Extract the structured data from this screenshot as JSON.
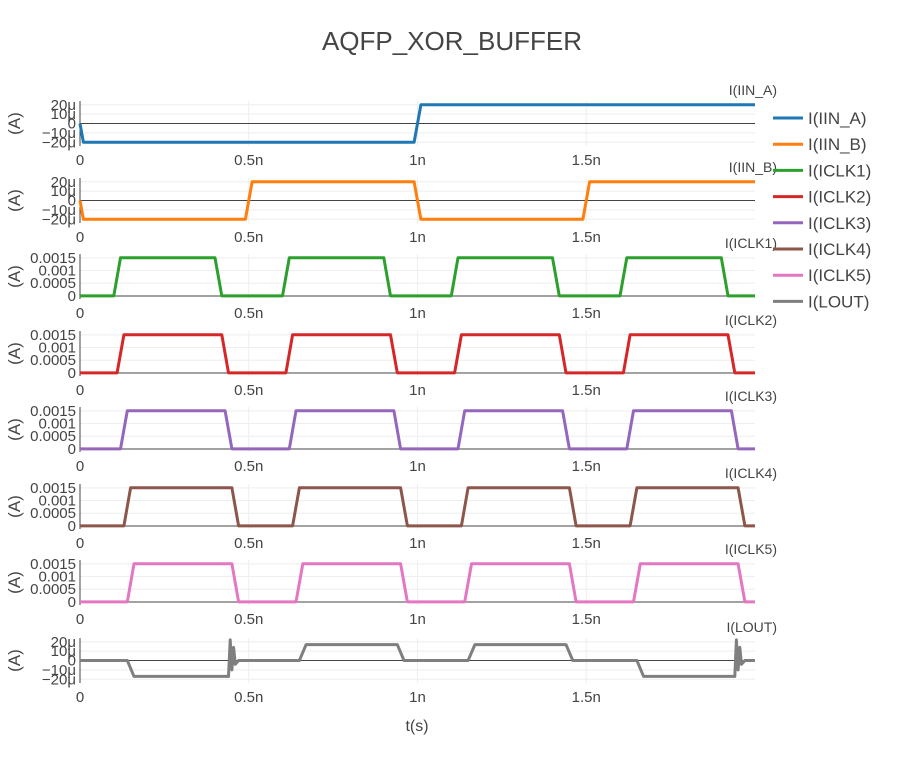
{
  "chart_data": {
    "type": "line",
    "title": "AQFP_XOR_BUFFER",
    "xlabel": "t(s)",
    "x_ticks": [
      {
        "value": 0,
        "label": "0"
      },
      {
        "value": 0.5,
        "label": "0.5n"
      },
      {
        "value": 1.0,
        "label": "1n"
      },
      {
        "value": 1.5,
        "label": "1.5n"
      }
    ],
    "x_unit_note": "x values in ns",
    "xlim": [
      0,
      2.0
    ],
    "grid": true,
    "legend": "right",
    "subplots": [
      {
        "name": "I(IIN_A)",
        "title": "I(IIN_A)",
        "ylabel": "(A)",
        "color": "#1f77b4",
        "ylim": [
          -24,
          24
        ],
        "y_ticks": [
          {
            "value": 20,
            "label": "20μ"
          },
          {
            "value": 10,
            "label": "10μ"
          },
          {
            "value": 0,
            "label": "0"
          },
          {
            "value": -10,
            "label": "−10μ"
          },
          {
            "value": -20,
            "label": "−20μ"
          }
        ],
        "x": [
          0,
          0.01,
          0.99,
          1.01,
          2.0
        ],
        "y": [
          0,
          -20,
          -20,
          20,
          20
        ]
      },
      {
        "name": "I(IIN_B)",
        "title": "I(IIN_B)",
        "ylabel": "(A)",
        "color": "#ff7f0e",
        "ylim": [
          -24,
          24
        ],
        "y_ticks": [
          {
            "value": 20,
            "label": "20μ"
          },
          {
            "value": 10,
            "label": "10μ"
          },
          {
            "value": 0,
            "label": "0"
          },
          {
            "value": -10,
            "label": "−10μ"
          },
          {
            "value": -20,
            "label": "−20μ"
          }
        ],
        "x": [
          0,
          0.01,
          0.49,
          0.51,
          0.99,
          1.01,
          1.49,
          1.51,
          2.0
        ],
        "y": [
          0,
          -20,
          -20,
          20,
          20,
          -20,
          -20,
          20,
          20
        ]
      },
      {
        "name": "I(ICLK1)",
        "title": "I(ICLK1)",
        "ylabel": "(A)",
        "color": "#2ca02c",
        "ylim": [
          -0.00012,
          0.00165
        ],
        "y_ticks": [
          {
            "value": 0.0015,
            "label": "0.0015"
          },
          {
            "value": 0.001,
            "label": "0.001"
          },
          {
            "value": 0.0005,
            "label": "0.0005"
          },
          {
            "value": 0,
            "label": "0"
          }
        ],
        "x": [
          0,
          0.1,
          0.12,
          0.4,
          0.42,
          0.6,
          0.62,
          0.9,
          0.92,
          1.1,
          1.12,
          1.4,
          1.42,
          1.6,
          1.62,
          1.9,
          1.92,
          2.0
        ],
        "y": [
          0,
          0,
          0.0015,
          0.0015,
          0,
          0,
          0.0015,
          0.0015,
          0,
          0,
          0.0015,
          0.0015,
          0,
          0,
          0.0015,
          0.0015,
          0,
          0
        ]
      },
      {
        "name": "I(ICLK2)",
        "title": "I(ICLK2)",
        "ylabel": "(A)",
        "color": "#d62728",
        "ylim": [
          -0.00012,
          0.00165
        ],
        "y_ticks": [
          {
            "value": 0.0015,
            "label": "0.0015"
          },
          {
            "value": 0.001,
            "label": "0.001"
          },
          {
            "value": 0.0005,
            "label": "0.0005"
          },
          {
            "value": 0,
            "label": "0"
          }
        ],
        "x": [
          0,
          0.11,
          0.13,
          0.42,
          0.44,
          0.61,
          0.63,
          0.92,
          0.94,
          1.11,
          1.13,
          1.42,
          1.44,
          1.61,
          1.63,
          1.92,
          1.94,
          2.0
        ],
        "y": [
          0,
          0,
          0.0015,
          0.0015,
          0,
          0,
          0.0015,
          0.0015,
          0,
          0,
          0.0015,
          0.0015,
          0,
          0,
          0.0015,
          0.0015,
          0,
          0
        ]
      },
      {
        "name": "I(ICLK3)",
        "title": "I(ICLK3)",
        "ylabel": "(A)",
        "color": "#9467bd",
        "ylim": [
          -0.00012,
          0.00165
        ],
        "y_ticks": [
          {
            "value": 0.0015,
            "label": "0.0015"
          },
          {
            "value": 0.001,
            "label": "0.001"
          },
          {
            "value": 0.0005,
            "label": "0.0005"
          },
          {
            "value": 0,
            "label": "0"
          }
        ],
        "x": [
          0,
          0.12,
          0.14,
          0.43,
          0.45,
          0.62,
          0.64,
          0.93,
          0.95,
          1.12,
          1.14,
          1.43,
          1.45,
          1.62,
          1.64,
          1.93,
          1.95,
          2.0
        ],
        "y": [
          0,
          0,
          0.0015,
          0.0015,
          0,
          0,
          0.0015,
          0.0015,
          0,
          0,
          0.0015,
          0.0015,
          0,
          0,
          0.0015,
          0.0015,
          0,
          0
        ]
      },
      {
        "name": "I(ICLK4)",
        "title": "I(ICLK4)",
        "ylabel": "(A)",
        "color": "#8c564b",
        "ylim": [
          -0.00012,
          0.00165
        ],
        "y_ticks": [
          {
            "value": 0.0015,
            "label": "0.0015"
          },
          {
            "value": 0.001,
            "label": "0.001"
          },
          {
            "value": 0.0005,
            "label": "0.0005"
          },
          {
            "value": 0,
            "label": "0"
          }
        ],
        "x": [
          0,
          0.13,
          0.15,
          0.45,
          0.47,
          0.63,
          0.65,
          0.95,
          0.97,
          1.13,
          1.15,
          1.45,
          1.47,
          1.63,
          1.65,
          1.95,
          1.97,
          2.0
        ],
        "y": [
          0,
          0,
          0.0015,
          0.0015,
          0,
          0,
          0.0015,
          0.0015,
          0,
          0,
          0.0015,
          0.0015,
          0,
          0,
          0.0015,
          0.0015,
          0,
          0
        ]
      },
      {
        "name": "I(ICLK5)",
        "title": "I(ICLK5)",
        "ylabel": "(A)",
        "color": "#e377c2",
        "ylim": [
          -0.00012,
          0.00165
        ],
        "y_ticks": [
          {
            "value": 0.0015,
            "label": "0.0015"
          },
          {
            "value": 0.001,
            "label": "0.001"
          },
          {
            "value": 0.0005,
            "label": "0.0005"
          },
          {
            "value": 0,
            "label": "0"
          }
        ],
        "x": [
          0,
          0.14,
          0.16,
          0.45,
          0.47,
          0.64,
          0.66,
          0.95,
          0.97,
          1.14,
          1.16,
          1.45,
          1.47,
          1.64,
          1.66,
          1.95,
          1.97,
          2.0
        ],
        "y": [
          0,
          0,
          0.0015,
          0.0015,
          0,
          0,
          0.0015,
          0.0015,
          0,
          0,
          0.0015,
          0.0015,
          0,
          0,
          0.0015,
          0.0015,
          0,
          0
        ]
      },
      {
        "name": "I(LOUT)",
        "title": "I(LOUT)",
        "ylabel": "(A)",
        "color": "#7f7f7f",
        "ylim": [
          -24,
          24
        ],
        "y_ticks": [
          {
            "value": 20,
            "label": "20μ"
          },
          {
            "value": 10,
            "label": "10μ"
          },
          {
            "value": 0,
            "label": "0"
          },
          {
            "value": -10,
            "label": "−10μ"
          },
          {
            "value": -20,
            "label": "−20μ"
          }
        ],
        "x": [
          0,
          0.14,
          0.16,
          0.44,
          0.445,
          0.45,
          0.455,
          0.46,
          0.47,
          0.65,
          0.67,
          0.94,
          0.96,
          1.15,
          1.17,
          1.44,
          1.46,
          1.65,
          1.67,
          1.94,
          1.945,
          1.95,
          1.955,
          1.96,
          1.97,
          2.0
        ],
        "y": [
          0,
          0,
          -17,
          -17,
          22,
          -10,
          14,
          -4,
          0,
          0,
          17,
          17,
          0,
          0,
          17,
          17,
          0,
          0,
          -17,
          -17,
          22,
          -10,
          14,
          -4,
          0,
          0
        ]
      }
    ]
  }
}
